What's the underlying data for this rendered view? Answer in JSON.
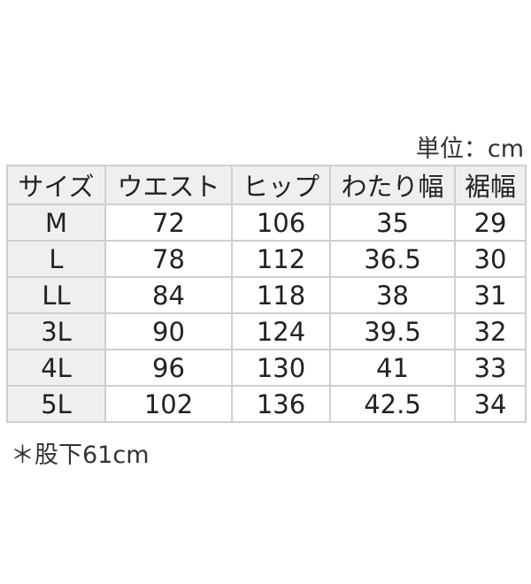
{
  "unit_label": "単位：cm",
  "headers": [
    "サイズ",
    "ウエスト",
    "ヒップ",
    "わたり幅",
    "裾幅"
  ],
  "rows": [
    [
      "M",
      "72",
      "106",
      "35",
      "29"
    ],
    [
      "L",
      "78",
      "112",
      "36.5",
      "30"
    ],
    [
      "LL",
      "84",
      "118",
      "38",
      "31"
    ],
    [
      "3L",
      "90",
      "124",
      "39.5",
      "32"
    ],
    [
      "4L",
      "96",
      "130",
      "41",
      "33"
    ],
    [
      "5L",
      "102",
      "136",
      "42.5",
      "34"
    ]
  ],
  "note": "＊股下61cm"
}
